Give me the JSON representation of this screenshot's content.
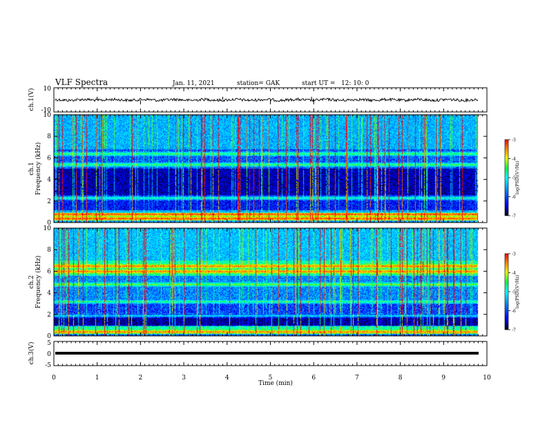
{
  "header": {
    "title": "VLF Spectra",
    "date": "Jan. 11, 2021",
    "station": "station= GAK",
    "start": "start UT =   12: 10: 0"
  },
  "chart_data": [
    {
      "type": "line",
      "ylabel": "ch.1(V)",
      "ylim": [
        -10,
        10
      ],
      "yticks": [
        "10",
        "-10"
      ],
      "xlim": [
        0,
        10
      ],
      "baseline_level": 0,
      "spike_times_min": [
        1.0,
        2.0,
        3.9,
        5.0,
        5.95,
        6.0
      ],
      "grid": false
    },
    {
      "type": "heatmap",
      "ylabel": "ch.1\nFrequency (kHz)",
      "ylim": [
        0,
        10
      ],
      "yticks": [
        "10",
        "8",
        "6",
        "4",
        "2",
        "0"
      ],
      "xlim": [
        0,
        10
      ],
      "data_end_min": 9.8,
      "bright_bands_khz": [
        0.4,
        0.8,
        2.3,
        5.4,
        6.4
      ],
      "colorbar": {
        "label": "log(PSD)(V²/Hz)",
        "range": [
          -7,
          -3
        ],
        "ticks": [
          "-3",
          "-4",
          "-5",
          "-6",
          "-7"
        ]
      }
    },
    {
      "type": "heatmap",
      "ylabel": "ch.2\nFrequency (kHz)",
      "ylim": [
        0,
        10
      ],
      "yticks": [
        "10",
        "8",
        "6",
        "4",
        "2",
        "0"
      ],
      "xlim": [
        0,
        10
      ],
      "data_end_min": 9.8,
      "bright_bands_khz": [
        0.4,
        1.9,
        3.2,
        4.8,
        6.0,
        6.5
      ],
      "colorbar": {
        "label": "log(PSD)(V²/Hz)",
        "range": [
          -7,
          -3
        ],
        "ticks": [
          "-3",
          "-4",
          "-5",
          "-6",
          "-7"
        ]
      }
    },
    {
      "type": "line",
      "ylabel": "ch.3(V)",
      "ylim": [
        -5,
        5
      ],
      "yticks": [
        "5",
        "0",
        "-5"
      ],
      "xlim": [
        0,
        10
      ],
      "xlabel": "Time (min)",
      "xticks": [
        "0",
        "1",
        "2",
        "3",
        "4",
        "5",
        "6",
        "7",
        "8",
        "9",
        "10"
      ],
      "level": 0
    }
  ],
  "colors": {
    "line": "#000000",
    "colormap": [
      "#000010",
      "#0000ff",
      "#0090ff",
      "#00ffff",
      "#00ff40",
      "#e0ff00",
      "#ff8000",
      "#ff0000"
    ]
  }
}
